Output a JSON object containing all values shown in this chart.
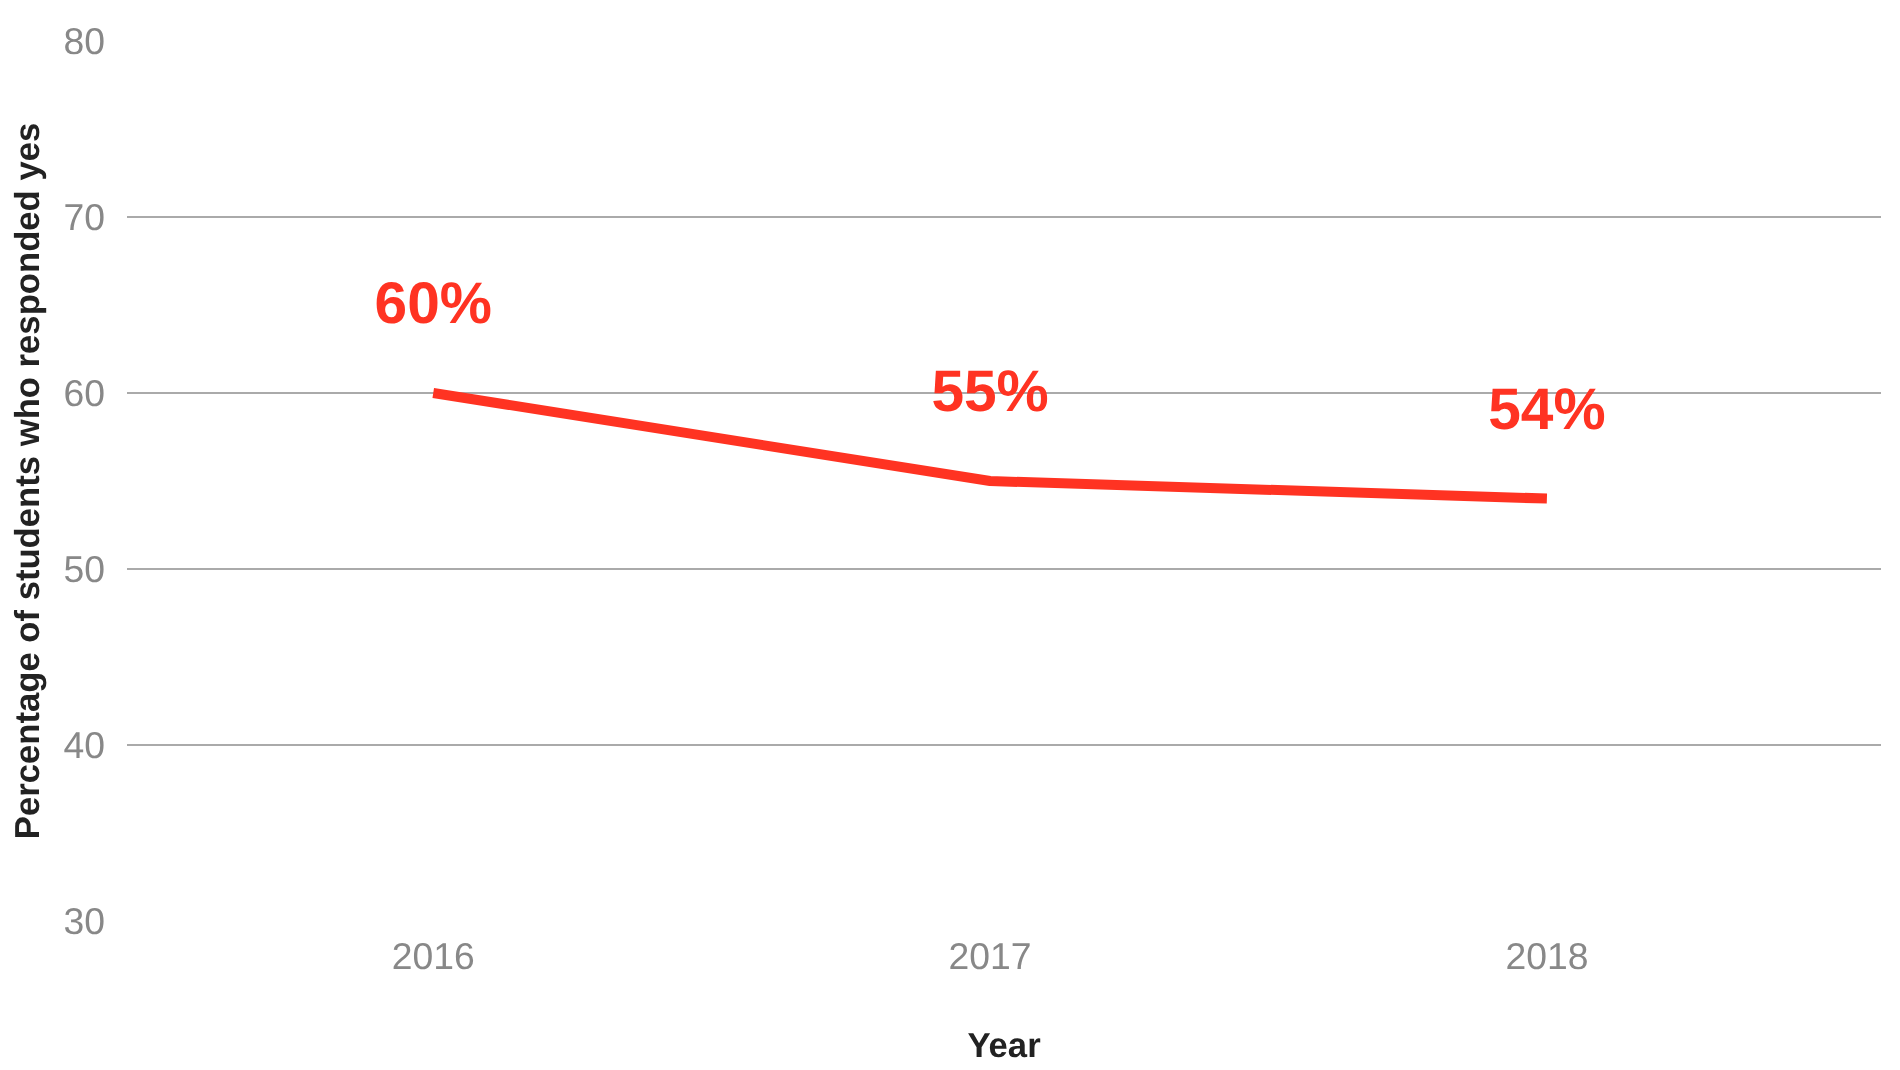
{
  "chart_data": {
    "type": "line",
    "xlabel": "Year",
    "ylabel": "Percentage of students who responded yes",
    "categories": [
      "2016",
      "2017",
      "2018"
    ],
    "series": [
      {
        "color": "#ff3322",
        "values": [
          60,
          55,
          54
        ],
        "value_labels": [
          "60%",
          "55%",
          "54%"
        ]
      }
    ],
    "ylim": [
      30,
      80
    ],
    "yticks": [
      30,
      40,
      50,
      60,
      70,
      80
    ],
    "grid": "y",
    "marker": "none",
    "line_style": "solid"
  }
}
